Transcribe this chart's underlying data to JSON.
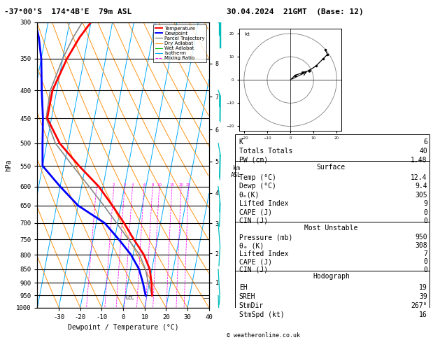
{
  "title_left": "-37°00'S  174°4B'E  79m ASL",
  "title_right": "30.04.2024  21GMT  (Base: 12)",
  "xlabel": "Dewpoint / Temperature (°C)",
  "ylabel_left": "hPa",
  "pressure_levels": [
    300,
    350,
    400,
    450,
    500,
    550,
    600,
    650,
    700,
    750,
    800,
    850,
    900,
    950,
    1000
  ],
  "T_min": -40,
  "T_max": 40,
  "p_min": 300,
  "p_max": 1000,
  "SKEW": 25.0,
  "temperature_profile_T": [
    12.4,
    11.0,
    9.0,
    5.0,
    -1.0,
    -7.0,
    -14.0,
    -22.0,
    -33.0,
    -44.0,
    -52.0,
    -52.0,
    -48.0,
    -44.0,
    -40.0
  ],
  "temperature_profile_P": [
    950,
    900,
    850,
    800,
    750,
    700,
    650,
    600,
    550,
    500,
    450,
    400,
    350,
    320,
    300
  ],
  "dewpoint_profile_T": [
    9.4,
    7.0,
    4.0,
    -1.0,
    -8.0,
    -16.0,
    -30.0,
    -40.0,
    -50.0,
    -52.0,
    -54.0,
    -57.0,
    -60.0,
    -63.0,
    -66.0
  ],
  "dewpoint_profile_P": [
    950,
    900,
    850,
    800,
    750,
    700,
    650,
    600,
    550,
    500,
    450,
    400,
    350,
    320,
    300
  ],
  "parcel_profile_T": [
    12.4,
    9.5,
    7.0,
    3.0,
    -3.5,
    -10.5,
    -18.0,
    -26.5,
    -36.0,
    -46.0,
    -52.5,
    -53.0,
    -50.0,
    -47.0,
    -44.0
  ],
  "parcel_profile_P": [
    950,
    900,
    850,
    800,
    750,
    700,
    650,
    600,
    550,
    500,
    450,
    400,
    350,
    320,
    300
  ],
  "color_temp": "#ff0000",
  "color_dewp": "#0000ff",
  "color_parcel": "#888888",
  "color_dry_adiabat": "#ff8c00",
  "color_wet_adiabat": "#00bb00",
  "color_isotherm": "#00aaff",
  "color_mixing_ratio": "#ff00ff",
  "mixing_ratio_values": [
    1,
    2,
    3,
    4,
    6,
    8,
    10,
    15,
    20,
    25
  ],
  "km_pressure": {
    "8": 357,
    "7": 411,
    "6": 472,
    "5": 540,
    "4": 616,
    "3": 701,
    "2": 795,
    "1": 899
  },
  "LCL_pressure": 960,
  "wind_barb_pressures": [
    300,
    400,
    500,
    600,
    700,
    850,
    950
  ],
  "wind_barb_speeds_kt": [
    35,
    25,
    20,
    15,
    10,
    8,
    5
  ],
  "wind_barb_dirs": [
    270,
    260,
    250,
    240,
    230,
    220,
    210
  ],
  "hodo_u": [
    0,
    2,
    5,
    8,
    11,
    14,
    16,
    15
  ],
  "hodo_v": [
    0,
    2,
    3,
    4,
    6,
    9,
    11,
    13
  ],
  "storm_u": 8,
  "storm_v": 4,
  "stats": {
    "K": 6,
    "Totals_Totals": 40,
    "PW_cm": 1.48,
    "Surf_Temp": 12.4,
    "Surf_Dewp": 9.4,
    "Surf_ThetaE": 305,
    "Surf_LI": 9,
    "Surf_CAPE": 0,
    "Surf_CIN": 0,
    "MU_Pressure": 950,
    "MU_ThetaE": 308,
    "MU_LI": 7,
    "MU_CAPE": 0,
    "MU_CIN": 0,
    "EH": 19,
    "SREH": 39,
    "StmDir": 267,
    "StmSpd": 16
  }
}
